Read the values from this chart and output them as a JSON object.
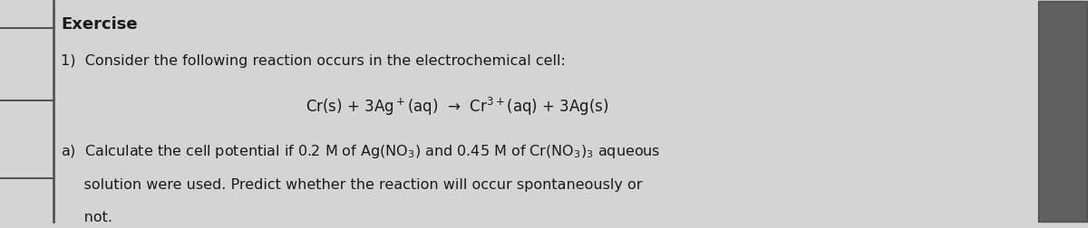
{
  "background_color": "#d4d4d4",
  "text_color": "#1a1a1a",
  "title": "Exercise",
  "line1": "1)  Consider the following reaction occurs in the electrochemical cell:",
  "equation": "Cr(s) + 3Ag$^+$(aq)  →  Cr$^{3+}$(aq) + 3Ag(s)",
  "part_a_line1": "a)  Calculate the cell potential if 0.2 M of Ag(NO$_3$) and 0.45 M of Cr(NO$_3$)$_3$ aqueous",
  "part_a_line2": "     solution were used. Predict whether the reaction will occur spontaneously or",
  "part_a_line3": "     not.",
  "left_bar_color": "#555555",
  "dark_right_color": "#3a3a3a"
}
